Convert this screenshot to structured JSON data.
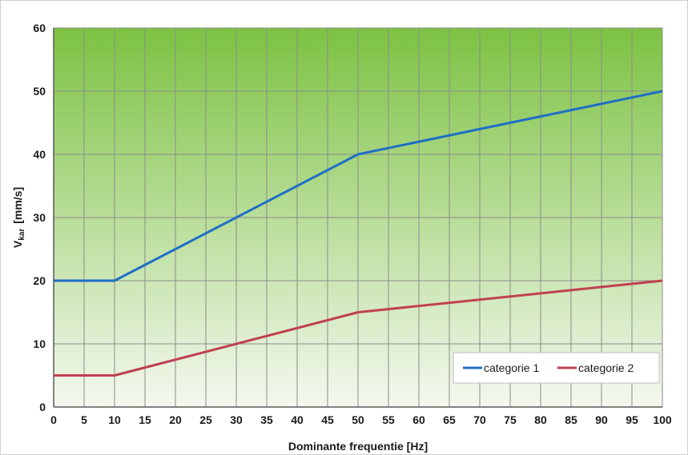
{
  "chart_data": {
    "type": "line",
    "title": "",
    "xlabel": "Dominante frequentie  [Hz]",
    "ylabel_main": "V",
    "ylabel_sub": "kar",
    "ylabel_unit": "[mm/s]",
    "xlim": [
      0,
      100
    ],
    "ylim": [
      0,
      60
    ],
    "xticks": [
      0,
      5,
      10,
      15,
      20,
      25,
      30,
      35,
      40,
      45,
      50,
      55,
      60,
      65,
      70,
      75,
      80,
      85,
      90,
      95,
      100
    ],
    "yticks": [
      0,
      10,
      20,
      30,
      40,
      50,
      60
    ],
    "grid": true,
    "legend_position": "bottom-right",
    "background_gradient": {
      "top": "#7cc242",
      "bottom": "#f4f8ef"
    },
    "series": [
      {
        "name": "categorie 1",
        "color": "#1f6fc5",
        "x": [
          0,
          10,
          50,
          100
        ],
        "y": [
          20,
          20,
          40,
          50
        ]
      },
      {
        "name": "categorie 2",
        "color": "#c0404f",
        "x": [
          0,
          10,
          50,
          100
        ],
        "y": [
          5,
          5,
          15,
          20
        ]
      }
    ]
  }
}
